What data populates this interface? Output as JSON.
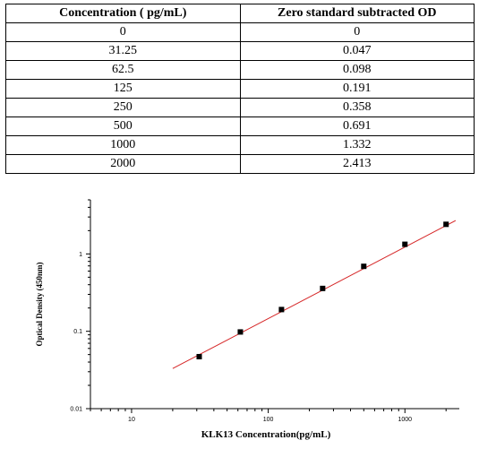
{
  "table": {
    "headers": [
      "Concentration ( pg/mL)",
      "Zero standard subtracted OD"
    ],
    "rows": [
      [
        "0",
        "0"
      ],
      [
        "31.25",
        "0.047"
      ],
      [
        "62.5",
        "0.098"
      ],
      [
        "125",
        "0.191"
      ],
      [
        "250",
        "0.358"
      ],
      [
        "500",
        "0.691"
      ],
      [
        "1000",
        "1.332"
      ],
      [
        "2000",
        "2.413"
      ]
    ]
  },
  "chart_data": {
    "type": "scatter",
    "xlabel": "KLK13  Concentration(pg/mL)",
    "ylabel": "Optical Density (450nm)",
    "xscale": "log",
    "yscale": "log",
    "xlim": [
      5,
      2500
    ],
    "ylim": [
      0.01,
      5
    ],
    "xticks": [
      10,
      100,
      1000
    ],
    "xtick_labels": [
      "10",
      "100",
      "1000"
    ],
    "yticks": [
      0.01,
      0.1,
      1
    ],
    "ytick_labels": [
      "0.01",
      "0.1",
      "1"
    ],
    "grid": false,
    "series": [
      {
        "x": [
          31.25,
          62.5,
          125,
          250,
          500,
          1000,
          2000
        ],
        "y": [
          0.047,
          0.098,
          0.191,
          0.358,
          0.691,
          1.332,
          2.413
        ],
        "marker": "square",
        "color": "#000000"
      }
    ],
    "fit_line": {
      "x": [
        20,
        2350
      ],
      "y": [
        0.033,
        2.7
      ],
      "color": "#d62728"
    }
  }
}
